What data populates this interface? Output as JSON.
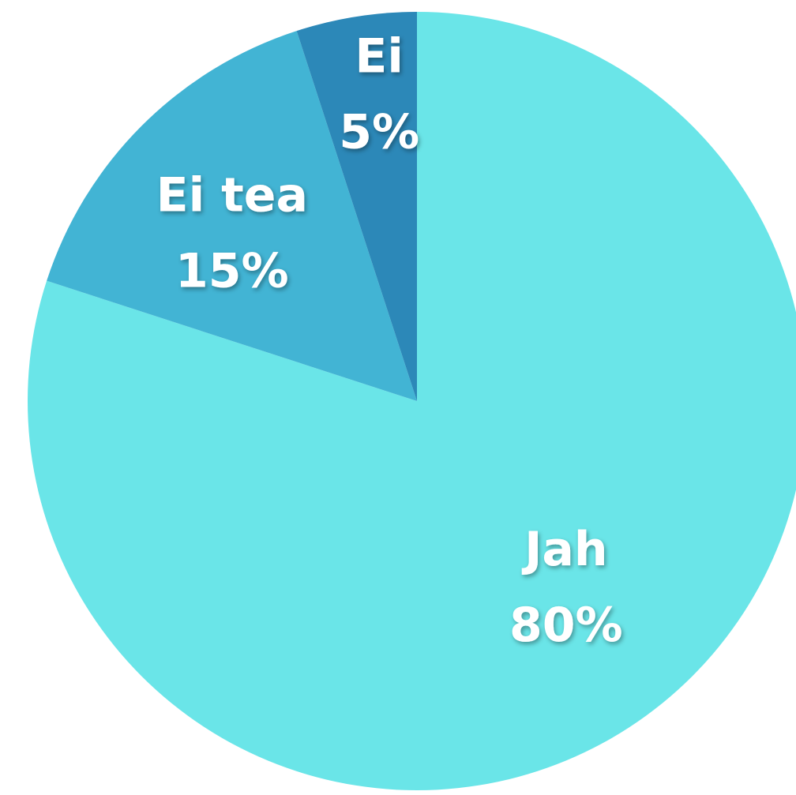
{
  "chart_data": {
    "type": "pie",
    "start_angle": "12 o'clock",
    "direction": "clockwise",
    "slices": [
      {
        "label": "Jah",
        "value": 80,
        "value_label": "80%",
        "color": "#6AE5E8"
      },
      {
        "label": "Ei tea",
        "value": 15,
        "value_label": "15%",
        "color": "#42B4D4"
      },
      {
        "label": "Ei",
        "value": 5,
        "value_label": "5%",
        "color": "#2C88B8"
      }
    ]
  }
}
